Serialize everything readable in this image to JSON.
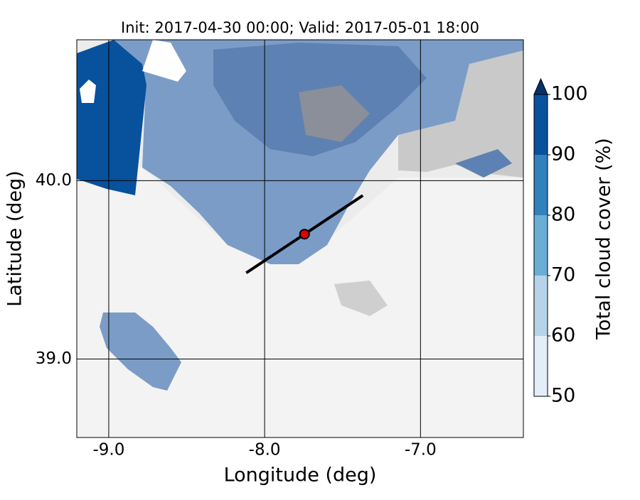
{
  "chart_data": {
    "type": "map",
    "title": "Init: 2017-04-30 00:00; Valid: 2017-05-01 18:00",
    "xlabel": "Longitude (deg)",
    "ylabel": "Latitude (deg)",
    "xlim": [
      -9.205,
      -6.34
    ],
    "ylim": [
      38.56,
      40.79
    ],
    "xticks": [
      {
        "value": -9,
        "label": "-9.0"
      },
      {
        "value": -8,
        "label": "-8.0"
      },
      {
        "value": -7,
        "label": "-7.0"
      }
    ],
    "yticks": [
      {
        "value": 39,
        "label": "39.0"
      },
      {
        "value": 40,
        "label": "40.0"
      }
    ],
    "grid": true,
    "transect": {
      "lon": [
        -8.118,
        -7.37
      ],
      "lat": [
        39.483,
        39.917
      ],
      "color": "#000000"
    },
    "point": {
      "lon": -7.744,
      "lat": 39.7,
      "color": "#e00000"
    },
    "colorbar": {
      "label": "Total cloud cover (%)",
      "levels": [
        50,
        60,
        70,
        80,
        90,
        100
      ],
      "colors": [
        "#e3eef8",
        "#b6d3e9",
        "#6aaed6",
        "#3181bd",
        "#08519c"
      ],
      "extend_color": "#08306b"
    }
  }
}
